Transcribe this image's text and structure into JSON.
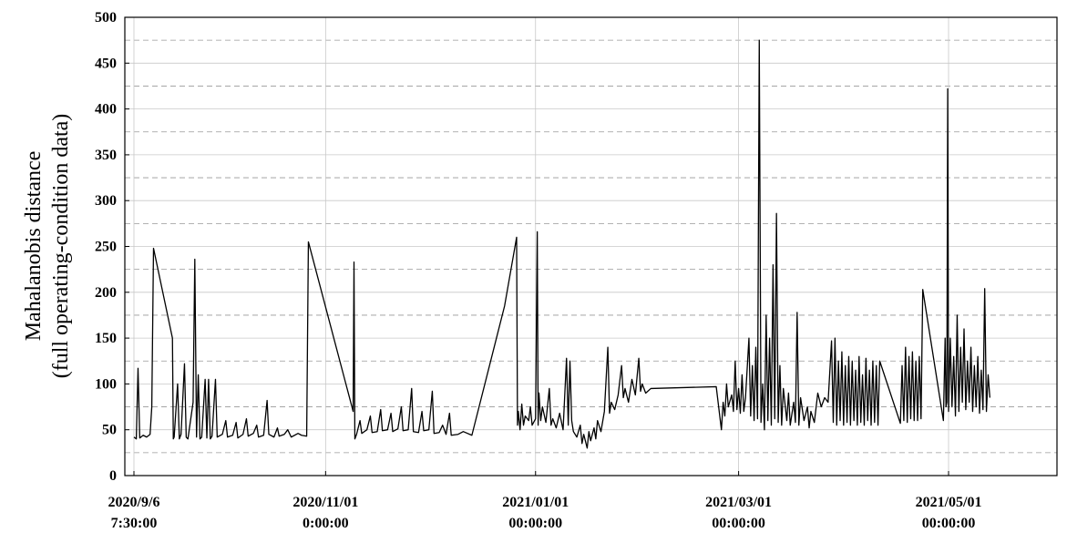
{
  "chart_data": {
    "type": "line",
    "ylabel": [
      "Mahalanobis distance",
      "(full operating-condition data)"
    ],
    "color": "#000000",
    "grid": true,
    "ylim": [
      0,
      500
    ],
    "yticks": [
      0,
      50,
      100,
      150,
      200,
      250,
      300,
      350,
      400,
      450,
      500
    ],
    "yminor": [
      25,
      75,
      125,
      175,
      225,
      275,
      325,
      375,
      425,
      475
    ],
    "xlim": [
      "2020-09-03 16:00",
      "2021-06-01 12:00"
    ],
    "xticks": [
      {
        "value": "2020-09-06 07:30",
        "label": "2020/9/6 7:30:00"
      },
      {
        "value": "2020-11-01 00:00",
        "label": "2020/11/01 0:00:00"
      },
      {
        "value": "2021-01-01 00:00",
        "label": "2021/01/01 00:00:00"
      },
      {
        "value": "2021-03-01 00:00",
        "label": "2021/03/01 00:00:00"
      },
      {
        "value": "2021-05-01 00:00",
        "label": "2021/05/01 00:00:00"
      }
    ],
    "x": [
      "2020-09-06 07:30",
      "2020-09-07 00:00",
      "2020-09-07 12:00",
      "2020-09-08 00:00",
      "2020-09-09 00:00",
      "2020-09-10 00:00",
      "2020-09-11 00:00",
      "2020-09-11 12:00",
      "2020-09-12 00:00",
      "2020-09-17 12:00",
      "2020-09-17 18:00",
      "2020-09-18 00:00",
      "2020-09-19 00:00",
      "2020-09-19 12:00",
      "2020-09-20 00:00",
      "2020-09-21 00:00",
      "2020-09-21 12:00",
      "2020-09-22 00:00",
      "2020-09-23 12:00",
      "2020-09-24 00:00",
      "2020-09-24 12:00",
      "2020-09-25 00:00",
      "2020-09-25 12:00",
      "2020-09-26 00:00",
      "2020-09-27 00:00",
      "2020-09-27 12:00",
      "2020-09-28 00:00",
      "2020-09-28 12:00",
      "2020-09-29 00:00",
      "2020-09-30 00:00",
      "2020-09-30 12:00",
      "2020-10-02 00:00",
      "2020-10-03 00:00",
      "2020-10-03 12:00",
      "2020-10-05 00:00",
      "2020-10-06 00:00",
      "2020-10-06 12:00",
      "2020-10-08 00:00",
      "2020-10-09 00:00",
      "2020-10-09 12:00",
      "2020-10-11 00:00",
      "2020-10-12 00:00",
      "2020-10-12 12:00",
      "2020-10-14 00:00",
      "2020-10-15 00:00",
      "2020-10-15 12:00",
      "2020-10-17 00:00",
      "2020-10-18 00:00",
      "2020-10-18 12:00",
      "2020-10-20 00:00",
      "2020-10-21 00:00",
      "2020-10-22 00:00",
      "2020-10-24 00:00",
      "2020-10-25 00:00",
      "2020-10-26 12:00",
      "2020-10-27 00:00",
      "2020-11-09 00:00",
      "2020-11-09 06:00",
      "2020-11-09 12:00",
      "2020-11-10 00:00",
      "2020-11-11 00:00",
      "2020-11-11 12:00",
      "2020-11-13 00:00",
      "2020-11-14 00:00",
      "2020-11-14 12:00",
      "2020-11-16 00:00",
      "2020-11-17 00:00",
      "2020-11-17 12:00",
      "2020-11-19 00:00",
      "2020-11-20 00:00",
      "2020-11-20 12:00",
      "2020-11-22 00:00",
      "2020-11-23 00:00",
      "2020-11-23 12:00",
      "2020-11-25 00:00",
      "2020-11-26 00:00",
      "2020-11-26 12:00",
      "2020-11-28 00:00",
      "2020-11-29 00:00",
      "2020-11-29 12:00",
      "2020-12-01 00:00",
      "2020-12-02 00:00",
      "2020-12-02 12:00",
      "2020-12-04 00:00",
      "2020-12-05 00:00",
      "2020-12-06 00:00",
      "2020-12-07 00:00",
      "2020-12-07 12:00",
      "2020-12-09 12:00",
      "2020-12-11 00:00",
      "2020-12-13 12:00",
      "2020-12-23 00:00",
      "2020-12-26 12:00",
      "2020-12-26 18:00",
      "2020-12-27 00:00",
      "2020-12-27 12:00",
      "2020-12-28 00:00",
      "2020-12-28 12:00",
      "2020-12-29 00:00",
      "2020-12-30 00:00",
      "2020-12-30 12:00",
      "2020-12-31 00:00",
      "2021-01-01 00:00",
      "2021-01-01 12:00",
      "2021-01-01 18:00",
      "2021-01-02 00:00",
      "2021-01-02 12:00",
      "2021-01-03 00:00",
      "2021-01-04 00:00",
      "2021-01-05 00:00",
      "2021-01-05 12:00",
      "2021-01-06 00:00",
      "2021-01-07 00:00",
      "2021-01-08 00:00",
      "2021-01-09 00:00",
      "2021-01-10 00:00",
      "2021-01-10 12:00",
      "2021-01-11 00:00",
      "2021-01-11 12:00",
      "2021-01-12 00:00",
      "2021-01-13 00:00",
      "2021-01-14 00:00",
      "2021-01-14 12:00",
      "2021-01-15 00:00",
      "2021-01-16 00:00",
      "2021-01-16 12:00",
      "2021-01-17 00:00",
      "2021-01-18 00:00",
      "2021-01-18 12:00",
      "2021-01-19 00:00",
      "2021-01-20 00:00",
      "2021-01-21 00:00",
      "2021-01-22 00:00",
      "2021-01-22 12:00",
      "2021-01-23 00:00",
      "2021-01-24 00:00",
      "2021-01-25 00:00",
      "2021-01-26 00:00",
      "2021-01-26 12:00",
      "2021-01-27 00:00",
      "2021-01-28 00:00",
      "2021-01-29 00:00",
      "2021-01-30 00:00",
      "2021-01-31 00:00",
      "2021-01-31 12:00",
      "2021-02-01 00:00",
      "2021-02-02 00:00",
      "2021-02-03 12:00",
      "2021-02-22 12:00",
      "2021-02-24 00:00",
      "2021-02-24 12:00",
      "2021-02-25 00:00",
      "2021-02-25 12:00",
      "2021-02-26 00:00",
      "2021-02-27 00:00",
      "2021-02-27 12:00",
      "2021-02-28 00:00",
      "2021-02-28 12:00",
      "2021-03-01 00:00",
      "2021-03-01 12:00",
      "2021-03-02 00:00",
      "2021-03-02 12:00",
      "2021-03-03 00:00",
      "2021-03-04 00:00",
      "2021-03-04 12:00",
      "2021-03-05 00:00",
      "2021-03-05 12:00",
      "2021-03-06 00:00",
      "2021-03-06 12:00",
      "2021-03-07 00:00",
      "2021-03-07 12:00",
      "2021-03-08 00:00",
      "2021-03-08 12:00",
      "2021-03-09 00:00",
      "2021-03-09 12:00",
      "2021-03-10 00:00",
      "2021-03-10 12:00",
      "2021-03-11 00:00",
      "2021-03-11 12:00",
      "2021-03-12 00:00",
      "2021-03-12 12:00",
      "2021-03-13 00:00",
      "2021-03-13 12:00",
      "2021-03-14 00:00",
      "2021-03-15 00:00",
      "2021-03-15 12:00",
      "2021-03-16 00:00",
      "2021-03-17 00:00",
      "2021-03-17 12:00",
      "2021-03-18 00:00",
      "2021-03-18 12:00",
      "2021-03-19 00:00",
      "2021-03-20 00:00",
      "2021-03-21 00:00",
      "2021-03-21 12:00",
      "2021-03-22 00:00",
      "2021-03-23 00:00",
      "2021-03-24 00:00",
      "2021-03-25 00:00",
      "2021-03-26 00:00",
      "2021-03-27 00:00",
      "2021-03-28 00:00",
      "2021-03-28 12:00",
      "2021-03-29 00:00",
      "2021-03-29 12:00",
      "2021-03-30 00:00",
      "2021-03-30 12:00",
      "2021-03-31 00:00",
      "2021-03-31 12:00",
      "2021-04-01 00:00",
      "2021-04-01 12:00",
      "2021-04-02 00:00",
      "2021-04-02 12:00",
      "2021-04-03 00:00",
      "2021-04-03 12:00",
      "2021-04-04 00:00",
      "2021-04-04 12:00",
      "2021-04-05 00:00",
      "2021-04-05 12:00",
      "2021-04-06 00:00",
      "2021-04-06 12:00",
      "2021-04-07 00:00",
      "2021-04-07 12:00",
      "2021-04-08 00:00",
      "2021-04-08 12:00",
      "2021-04-09 00:00",
      "2021-04-09 12:00",
      "2021-04-10 00:00",
      "2021-04-10 12:00",
      "2021-04-11 00:00",
      "2021-04-17 00:00",
      "2021-04-17 12:00",
      "2021-04-18 00:00",
      "2021-04-18 12:00",
      "2021-04-19 00:00",
      "2021-04-19 12:00",
      "2021-04-20 00:00",
      "2021-04-20 12:00",
      "2021-04-21 00:00",
      "2021-04-21 12:00",
      "2021-04-22 00:00",
      "2021-04-22 12:00",
      "2021-04-23 00:00",
      "2021-04-23 12:00",
      "2021-04-29 12:00",
      "2021-04-30 00:00",
      "2021-04-30 06:00",
      "2021-04-30 12:00",
      "2021-04-30 18:00",
      "2021-05-01 00:00",
      "2021-05-01 12:00",
      "2021-05-02 00:00",
      "2021-05-02 12:00",
      "2021-05-03 00:00",
      "2021-05-03 12:00",
      "2021-05-04 00:00",
      "2021-05-04 12:00",
      "2021-05-05 00:00",
      "2021-05-05 12:00",
      "2021-05-06 00:00",
      "2021-05-06 12:00",
      "2021-05-07 00:00",
      "2021-05-07 12:00",
      "2021-05-08 00:00",
      "2021-05-08 12:00",
      "2021-05-09 00:00",
      "2021-05-09 12:00",
      "2021-05-10 00:00",
      "2021-05-10 12:00",
      "2021-05-11 00:00",
      "2021-05-11 12:00",
      "2021-05-12 00:00",
      "2021-05-12 12:00",
      "2021-05-13 00:00"
    ],
    "values": [
      42,
      40,
      117,
      41,
      44,
      42,
      45,
      75,
      248,
      150,
      40,
      42,
      100,
      40,
      45,
      122,
      42,
      40,
      80,
      236,
      42,
      110,
      40,
      42,
      105,
      41,
      105,
      40,
      43,
      105,
      42,
      45,
      60,
      42,
      44,
      58,
      41,
      45,
      62,
      43,
      46,
      55,
      42,
      44,
      82,
      45,
      42,
      52,
      43,
      45,
      50,
      42,
      46,
      44,
      43,
      255,
      70,
      233,
      40,
      45,
      60,
      46,
      50,
      65,
      47,
      48,
      72,
      49,
      50,
      68,
      48,
      51,
      75,
      49,
      50,
      95,
      48,
      47,
      70,
      49,
      50,
      92,
      46,
      47,
      55,
      45,
      68,
      44,
      45,
      48,
      44,
      185,
      260,
      55,
      70,
      50,
      78,
      55,
      65,
      60,
      75,
      55,
      62,
      266,
      55,
      90,
      60,
      75,
      58,
      95,
      55,
      62,
      52,
      68,
      50,
      128,
      55,
      125,
      60,
      48,
      42,
      55,
      35,
      45,
      30,
      48,
      38,
      52,
      40,
      60,
      48,
      70,
      140,
      68,
      80,
      72,
      88,
      120,
      85,
      95,
      80,
      105,
      88,
      128,
      92,
      100,
      90,
      95,
      97,
      50,
      80,
      65,
      100,
      75,
      88,
      70,
      125,
      72,
      95,
      68,
      110,
      70,
      85,
      150,
      65,
      120,
      60,
      140,
      62,
      475,
      58,
      100,
      50,
      175,
      60,
      150,
      55,
      230,
      62,
      286,
      58,
      120,
      55,
      95,
      60,
      90,
      55,
      80,
      58,
      178,
      55,
      85,
      60,
      75,
      52,
      70,
      58,
      90,
      75,
      85,
      80,
      147,
      58,
      150,
      55,
      125,
      60,
      135,
      55,
      120,
      58,
      130,
      55,
      125,
      60,
      115,
      55,
      130,
      58,
      110,
      55,
      128,
      60,
      115,
      55,
      125,
      58,
      120,
      55,
      125,
      57,
      120,
      60,
      140,
      58,
      130,
      62,
      135,
      60,
      125,
      60,
      130,
      62,
      203,
      60,
      150,
      75,
      80,
      422,
      70,
      150,
      75,
      130,
      65,
      175,
      70,
      140,
      80,
      160,
      72,
      125,
      80,
      140,
      70,
      120,
      75,
      130,
      68,
      115,
      72,
      204,
      70,
      110,
      85
    ]
  }
}
